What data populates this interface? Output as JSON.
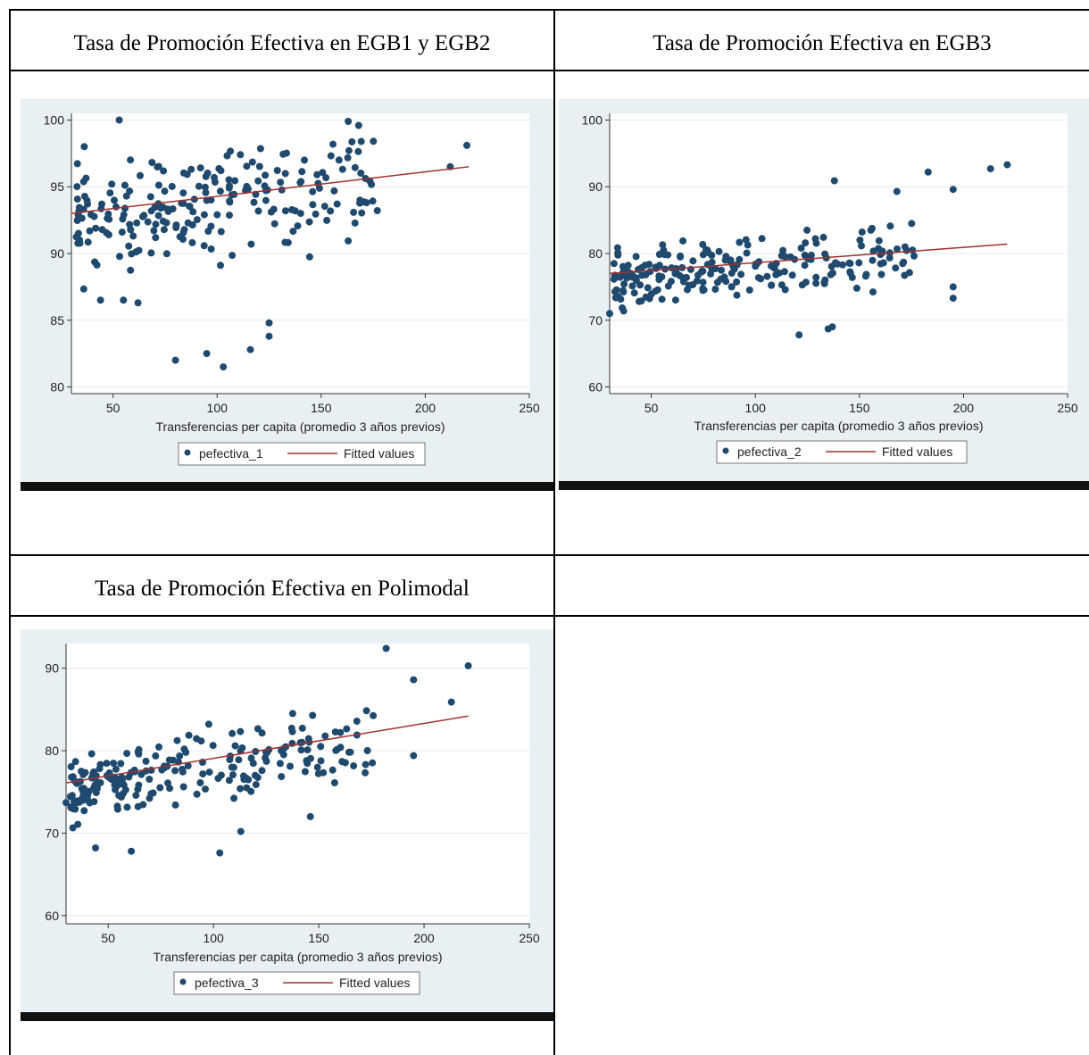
{
  "cells": {
    "top_left_title": "Tasa de Promoción Efectiva en EGB1 y EGB2",
    "top_right_title": "Tasa de Promoción Efectiva en EGB3",
    "bottom_left_title": "Tasa de Promoción Efectiva en Polimodal"
  },
  "chart_data": [
    {
      "type": "scatter",
      "title": "",
      "xlabel": "Transferencias per capita (promedio 3 años previos)",
      "ylabel": "",
      "xlim": [
        30,
        250
      ],
      "ylim": [
        79.5,
        100.5
      ],
      "x_ticks": [
        50,
        100,
        150,
        200,
        250
      ],
      "y_ticks": [
        80,
        85,
        90,
        95,
        100
      ],
      "grid": true,
      "legend_position": "bottom",
      "colors": {
        "points": "#1f4a6e",
        "fit": "#a0302f",
        "background": "#e9f0f4",
        "plot": "#ffffff"
      },
      "series": [
        {
          "name": "pefectiva_1",
          "kind": "scatter",
          "seed": 11,
          "n": 220,
          "slope": 0.019,
          "intercept": 92.4,
          "spread": 3.6,
          "ymin": 81.5,
          "ymax": 100,
          "x": [
            80,
            95,
            103,
            116,
            125,
            125,
            44,
            55,
            62,
            212,
            220,
            53,
            163,
            168
          ],
          "y": [
            82,
            82.5,
            81.5,
            82.8,
            83.8,
            84.8,
            86.5,
            86.5,
            86.3,
            96.5,
            98.1,
            100,
            99.9,
            99.6
          ]
        },
        {
          "name": "Fitted values",
          "kind": "line",
          "x": [
            30,
            221
          ],
          "y": [
            93.0,
            96.5
          ]
        }
      ]
    },
    {
      "type": "scatter",
      "title": "",
      "xlabel": "Transferencias per capita (promedio 3 años previos)",
      "ylabel": "",
      "xlim": [
        30,
        250
      ],
      "ylim": [
        59,
        101
      ],
      "x_ticks": [
        50,
        100,
        150,
        200,
        250
      ],
      "y_ticks": [
        60,
        70,
        80,
        90,
        100
      ],
      "grid": true,
      "legend_position": "bottom",
      "colors": {
        "points": "#1f4a6e",
        "fit": "#a0302f",
        "background": "#e9f0f4",
        "plot": "#ffffff"
      },
      "series": [
        {
          "name": "pefectiva_2",
          "kind": "scatter",
          "seed": 23,
          "n": 220,
          "slope": 0.023,
          "intercept": 76.3,
          "spread": 4.2,
          "ymin": 67.8,
          "ymax": 93.3,
          "x": [
            121,
            135,
            137,
            213,
            221,
            183,
            195,
            138,
            168,
            30,
            195,
            195
          ],
          "y": [
            67.8,
            68.7,
            69.0,
            92.7,
            93.3,
            92.2,
            89.6,
            90.9,
            89.3,
            71.0,
            75.0,
            73.3
          ]
        },
        {
          "name": "Fitted values",
          "kind": "line",
          "x": [
            30,
            221
          ],
          "y": [
            77.0,
            81.4
          ]
        }
      ]
    },
    {
      "type": "scatter",
      "title": "",
      "xlabel": "Transferencias per capita (promedio 3 años previos)",
      "ylabel": "",
      "xlim": [
        30,
        250
      ],
      "ylim": [
        59,
        93
      ],
      "x_ticks": [
        50,
        100,
        150,
        200,
        250
      ],
      "y_ticks": [
        60,
        70,
        80,
        90
      ],
      "grid": true,
      "legend_position": "bottom",
      "colors": {
        "points": "#1f4a6e",
        "fit": "#a0302f",
        "background": "#e9f0f4",
        "plot": "#ffffff"
      },
      "series": [
        {
          "name": "pefectiva_3",
          "kind": "scatter",
          "seed": 37,
          "n": 220,
          "slope": 0.042,
          "intercept": 74.9,
          "spread": 3.7,
          "ymin": 67.6,
          "ymax": 92.4,
          "x": [
            44,
            61,
            103,
            113,
            182,
            221,
            195,
            213,
            146,
            30,
            195
          ],
          "y": [
            68.2,
            67.8,
            67.6,
            70.2,
            92.4,
            90.3,
            88.6,
            85.9,
            72.0,
            73.7,
            79.4
          ]
        },
        {
          "name": "Fitted values",
          "kind": "line",
          "x": [
            30,
            221
          ],
          "y": [
            76.1,
            84.2
          ]
        }
      ]
    }
  ]
}
